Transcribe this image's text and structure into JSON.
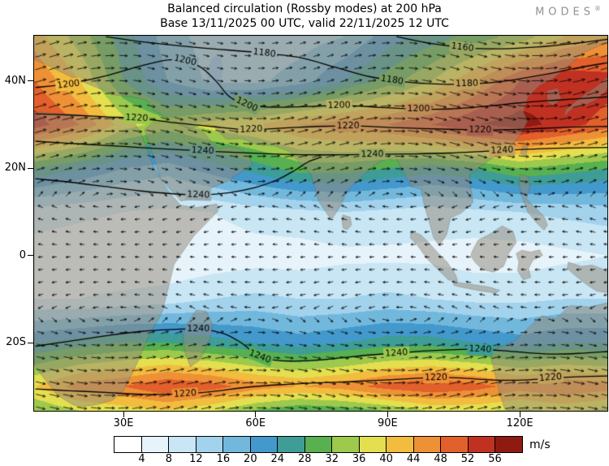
{
  "header": {
    "title_line1": "Balanced circulation (Rossby modes) at 200 hPa",
    "title_line2": "Base 13/11/2025 00 UTC, valid 22/11/2025 12 UTC",
    "logo_text": "MODES",
    "logo_reg": "®"
  },
  "chart_data": {
    "type": "heatmap",
    "title": "Balanced circulation (Rossby modes) at 200 hPa",
    "subtitle": "Base 13/11/2025 00 UTC, valid 22/11/2025 12 UTC",
    "variable": "balanced (Rossby mode) wind speed at 200 hPa with flow arrows and height contours",
    "unit": "m/s",
    "lon_range": [
      9.7,
      139.9
    ],
    "lat_range": [
      -35.6,
      50.4
    ],
    "lon_ticks": [
      {
        "lon": 30,
        "label": "30E"
      },
      {
        "lon": 60,
        "label": "60E"
      },
      {
        "lon": 90,
        "label": "90E"
      },
      {
        "lon": 120,
        "label": "120E"
      }
    ],
    "lat_ticks": [
      {
        "lat": 40,
        "label": "40N"
      },
      {
        "lat": 20,
        "label": "20N"
      },
      {
        "lat": 0,
        "label": "0"
      },
      {
        "lat": -20,
        "label": "20S"
      }
    ],
    "grid": {
      "lons": [
        10,
        20,
        30,
        40,
        50,
        60,
        70,
        80,
        90,
        100,
        110,
        120,
        130,
        140
      ],
      "lats": [
        50,
        40,
        30,
        20,
        10,
        0,
        -10,
        -20,
        -30,
        -40
      ],
      "speed": [
        [
          42,
          34,
          26,
          18,
          14,
          13,
          14,
          16,
          22,
          26,
          30,
          34,
          40,
          44
        ],
        [
          48,
          40,
          28,
          20,
          15,
          15,
          18,
          24,
          30,
          36,
          44,
          52,
          56,
          54
        ],
        [
          54,
          48,
          38,
          34,
          38,
          40,
          44,
          46,
          48,
          52,
          56,
          58,
          54,
          50
        ],
        [
          28,
          24,
          20,
          18,
          22,
          26,
          30,
          30,
          28,
          26,
          28,
          32,
          30,
          28
        ],
        [
          10,
          9,
          8,
          7,
          8,
          10,
          11,
          12,
          11,
          10,
          11,
          12,
          13,
          14
        ],
        [
          6,
          5,
          4,
          4,
          5,
          6,
          6,
          7,
          7,
          7,
          6,
          6,
          7,
          8
        ],
        [
          8,
          8,
          9,
          10,
          12,
          13,
          12,
          12,
          13,
          12,
          11,
          11,
          12,
          12
        ],
        [
          24,
          26,
          28,
          28,
          26,
          24,
          22,
          24,
          26,
          26,
          24,
          22,
          24,
          24
        ],
        [
          40,
          46,
          48,
          52,
          50,
          46,
          44,
          46,
          50,
          52,
          50,
          46,
          48,
          46
        ],
        [
          26,
          28,
          30,
          30,
          26,
          20,
          16,
          16,
          18,
          24,
          26,
          26,
          28,
          26
        ]
      ]
    },
    "colorscale": {
      "boundaries": [
        4,
        8,
        12,
        16,
        20,
        24,
        28,
        32,
        36,
        40,
        44,
        48,
        52,
        56
      ],
      "tick_labels": [
        "4",
        "8",
        "12",
        "16",
        "20",
        "24",
        "28",
        "32",
        "36",
        "40",
        "44",
        "48",
        "52",
        "56"
      ],
      "colors": [
        "#ffffff",
        "#e6f3fa",
        "#c8e6f4",
        "#a2d2ec",
        "#72b8dd",
        "#4499cc",
        "#3e9d96",
        "#58b050",
        "#9dc94d",
        "#e3df4f",
        "#f2bc3f",
        "#ee9136",
        "#e2602c",
        "#c03122",
        "#8f1a12"
      ]
    },
    "contours": {
      "levels": [
        1160,
        1180,
        1200,
        1220,
        1240
      ],
      "lines": [
        {
          "value": 1160,
          "points": [
            [
              92,
              50.2
            ],
            [
              100,
              48.6
            ],
            [
              108,
              47.6
            ],
            [
              116,
              47.4
            ],
            [
              124,
              47.8
            ],
            [
              132,
              48.6
            ],
            [
              140,
              49.6
            ]
          ],
          "labels": [
            [
              107,
              47.7
            ]
          ]
        },
        {
          "value": 1180,
          "points": [
            [
              26,
              50.2
            ],
            [
              36,
              48.8
            ],
            [
              48,
              47.6
            ],
            [
              60,
              46.6
            ],
            [
              70,
              45.4
            ],
            [
              78,
              43.2
            ],
            [
              86,
              41.0
            ],
            [
              94,
              39.8
            ],
            [
              102,
              39.3
            ],
            [
              110,
              39.4
            ],
            [
              118,
              40.2
            ],
            [
              126,
              41.6
            ],
            [
              134,
              43.2
            ],
            [
              140,
              44.2
            ]
          ],
          "labels": [
            [
              62,
              46.4
            ],
            [
              91,
              40.2
            ],
            [
              108,
              39.4
            ]
          ]
        },
        {
          "value": 1200,
          "points": [
            [
              10,
              38.5
            ],
            [
              18,
              39.5
            ],
            [
              26,
              41.2
            ],
            [
              34,
              43.5
            ],
            [
              41,
              44.9
            ],
            [
              47,
              43.5
            ],
            [
              51,
              40.0
            ],
            [
              54,
              36.5
            ],
            [
              58,
              34.6
            ],
            [
              64,
              34.0
            ],
            [
              72,
              34.2
            ],
            [
              80,
              34.4
            ],
            [
              88,
              34.0
            ],
            [
              96,
              33.6
            ],
            [
              104,
              33.6
            ],
            [
              112,
              34.2
            ],
            [
              120,
              35.0
            ],
            [
              128,
              35.6
            ],
            [
              140,
              36.4
            ]
          ],
          "labels": [
            [
              17.5,
              39.2
            ],
            [
              44,
              44.7
            ],
            [
              58,
              34.6
            ],
            [
              79,
              34.4
            ],
            [
              97,
              33.6
            ]
          ]
        },
        {
          "value": 1220,
          "points": [
            [
              10,
              32.5
            ],
            [
              18,
              32.2
            ],
            [
              26,
              31.8
            ],
            [
              34,
              31.4
            ],
            [
              42,
              30.4
            ],
            [
              50,
              29.6
            ],
            [
              58,
              28.9
            ],
            [
              66,
              29.2
            ],
            [
              74,
              29.6
            ],
            [
              82,
              29.7
            ],
            [
              90,
              29.4
            ],
            [
              98,
              29.1
            ],
            [
              106,
              28.9
            ],
            [
              114,
              28.8
            ],
            [
              122,
              29.0
            ],
            [
              130,
              29.4
            ],
            [
              140,
              29.6
            ]
          ],
          "labels": [
            [
              33,
              31.5
            ],
            [
              59,
              28.9
            ],
            [
              81,
              29.7
            ],
            [
              111,
              28.8
            ]
          ]
        },
        {
          "value": 1240,
          "points": [
            [
              10,
              26.2
            ],
            [
              20,
              25.6
            ],
            [
              30,
              25.0
            ],
            [
              40,
              24.4
            ],
            [
              48,
              24.0
            ],
            [
              56,
              23.6
            ],
            [
              64,
              23.3
            ],
            [
              72,
              23.1
            ],
            [
              80,
              23.1
            ],
            [
              88,
              23.2
            ],
            [
              96,
              23.3
            ],
            [
              104,
              23.5
            ],
            [
              112,
              23.9
            ],
            [
              120,
              24.3
            ],
            [
              128,
              24.6
            ],
            [
              140,
              24.8
            ]
          ],
          "labels": [
            [
              48,
              24.0
            ],
            [
              86.5,
              23.2
            ],
            [
              116,
              24.1
            ]
          ]
        },
        {
          "value": 1240,
          "points": [
            [
              10,
              17.6
            ],
            [
              18,
              16.8
            ],
            [
              26,
              15.8
            ],
            [
              34,
              14.8
            ],
            [
              42,
              14.1
            ],
            [
              48,
              13.9
            ],
            [
              54,
              14.4
            ],
            [
              60,
              15.6
            ],
            [
              65,
              17.4
            ],
            [
              69,
              19.6
            ],
            [
              72,
              21.5
            ],
            [
              75,
              22.6
            ]
          ],
          "labels": [
            [
              47,
              13.9
            ]
          ]
        },
        {
          "value": 1240,
          "points": [
            [
              10,
              -20.8
            ],
            [
              18,
              -19.6
            ],
            [
              26,
              -18.4
            ],
            [
              34,
              -17.4
            ],
            [
              42,
              -16.9
            ],
            [
              48,
              -16.9
            ],
            [
              53,
              -18.0
            ],
            [
              57,
              -20.2
            ],
            [
              60,
              -22.6
            ],
            [
              63,
              -23.8
            ],
            [
              68,
              -24.2
            ],
            [
              74,
              -24.0
            ],
            [
              80,
              -23.4
            ],
            [
              86,
              -22.8
            ],
            [
              92,
              -22.4
            ],
            [
              98,
              -21.9
            ],
            [
              104,
              -21.6
            ],
            [
              110,
              -21.5
            ],
            [
              116,
              -21.8
            ],
            [
              122,
              -22.3
            ],
            [
              128,
              -22.6
            ],
            [
              134,
              -22.4
            ],
            [
              140,
              -22.0
            ]
          ],
          "labels": [
            [
              47,
              -16.9
            ],
            [
              61,
              -23.2
            ],
            [
              92,
              -22.4
            ],
            [
              111,
              -21.5
            ]
          ]
        },
        {
          "value": 1220,
          "points": [
            [
              10,
              -30.6
            ],
            [
              18,
              -31.0
            ],
            [
              26,
              -31.4
            ],
            [
              34,
              -31.8
            ],
            [
              42,
              -31.8
            ],
            [
              50,
              -31.2
            ],
            [
              58,
              -30.2
            ],
            [
              66,
              -29.6
            ],
            [
              74,
              -29.2
            ],
            [
              82,
              -28.9
            ],
            [
              90,
              -28.5
            ],
            [
              98,
              -28.1
            ],
            [
              104,
              -28.0
            ],
            [
              110,
              -28.3
            ],
            [
              116,
              -28.6
            ],
            [
              122,
              -28.5
            ],
            [
              127,
              -28.1
            ],
            [
              133,
              -27.8
            ],
            [
              140,
              -27.6
            ]
          ],
          "labels": [
            [
              44,
              -31.7
            ],
            [
              101,
              -28.0
            ],
            [
              127,
              -28.0
            ]
          ]
        }
      ]
    },
    "wind_arrows": {
      "description": "black flow-direction arrows, westerlies in both subtropical jets, weak easterlies in deep tropics",
      "color": "#000000"
    }
  }
}
